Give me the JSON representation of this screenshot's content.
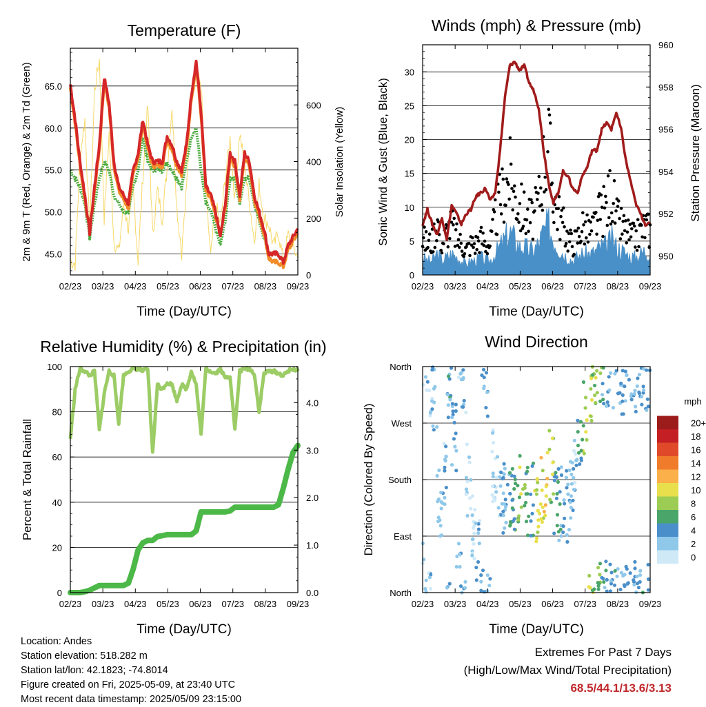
{
  "chart_data": [
    {
      "type": "line",
      "title": "Temperature (F)",
      "xlabel": "Time (Day/UTC)",
      "ylabel": "2m & 9m T (Red, Orange) & 2m Td (Green)",
      "ylabel_right": "Solar Insolation (Yellow)",
      "x_ticks": [
        "02/23",
        "03/23",
        "04/23",
        "05/23",
        "06/23",
        "07/23",
        "08/23",
        "09/23"
      ],
      "y_ticks": [
        "45.0",
        "50.0",
        "55.0",
        "60.0",
        "65.0"
      ],
      "y2_ticks": [
        "0",
        "200",
        "400",
        "600"
      ],
      "ylim": [
        42.5,
        69.5
      ],
      "y2lim": [
        0,
        800
      ],
      "grid": true,
      "series": [
        {
          "color": "#d62728",
          "values": [
            65.2,
            61,
            56,
            52,
            47.5,
            53,
            58,
            66,
            63,
            56,
            53,
            52,
            51,
            55,
            57,
            61,
            58,
            56,
            56,
            56,
            59,
            58,
            56,
            55,
            58,
            64,
            68,
            62,
            53,
            52,
            50,
            47,
            51,
            57,
            56,
            52,
            57,
            56,
            52,
            50,
            48,
            45,
            45,
            45,
            44,
            46,
            47,
            48
          ]
        },
        {
          "color": "#f28c28",
          "values": [
            64.8,
            60.5,
            55.5,
            51.5,
            47.8,
            52.5,
            57.5,
            65.5,
            62.5,
            55.5,
            52.5,
            51.5,
            50.5,
            54.5,
            56.5,
            60.5,
            57.5,
            55.5,
            55.5,
            55.5,
            58.5,
            57.5,
            55.5,
            54.5,
            57.5,
            63.5,
            67.5,
            61.5,
            52.5,
            51.5,
            49.5,
            47.2,
            50.5,
            56.5,
            55.5,
            51.5,
            56.5,
            55.5,
            51.5,
            49.5,
            47.5,
            44.5,
            44,
            44,
            43.5,
            45.5,
            46.5,
            47.5
          ]
        },
        {
          "color": "#4cab40",
          "values": [
            55,
            54,
            53,
            51,
            47,
            51,
            54,
            56,
            55,
            52,
            51,
            50,
            50,
            53,
            55,
            59,
            56,
            55,
            55,
            55,
            56,
            55,
            54,
            53,
            56,
            59,
            60,
            55,
            51,
            50,
            48,
            46,
            49,
            54,
            54,
            51,
            54,
            54,
            51,
            49,
            47,
            45,
            45,
            45,
            44,
            46,
            47,
            47
          ]
        },
        {
          "color": "#f5d458",
          "values": [
            50,
            40,
            420,
            550,
            150,
            650,
            760,
            200,
            500,
            120,
            80,
            250,
            160,
            300,
            50,
            350,
            600,
            140,
            300,
            200,
            380,
            600,
            240,
            80,
            300,
            640,
            700,
            680,
            300,
            60,
            250,
            180,
            340,
            480,
            260,
            500,
            380,
            260,
            120,
            320,
            200,
            180,
            100,
            150,
            50,
            140,
            100,
            60
          ]
        }
      ]
    },
    {
      "type": "scatter",
      "title": "Winds (mph) & Pressure (mb)",
      "xlabel": "Time (Day/UTC)",
      "ylabel": "Sonic Wind & Gust (Blue, Black)",
      "ylabel_right": "Station Pressure (Maroon)",
      "x_ticks": [
        "02/23",
        "03/23",
        "04/23",
        "05/23",
        "06/23",
        "07/23",
        "08/23",
        "09/23"
      ],
      "y_ticks": [
        "0",
        "5",
        "10",
        "15",
        "20",
        "25",
        "30"
      ],
      "y2_ticks": [
        "950",
        "952",
        "954",
        "956",
        "958",
        "960"
      ],
      "ylim": [
        0,
        34
      ],
      "y2lim": [
        949.1,
        960
      ],
      "grid": true,
      "series": [
        {
          "color": "#a11b1b",
          "values": [
            951.5,
            952.2,
            951.5,
            951,
            951.8,
            950.8,
            952.4,
            952,
            951.5,
            952,
            952.2,
            952.8,
            953,
            953.2,
            952.6,
            953,
            955,
            957.5,
            959,
            959.2,
            958.8,
            959,
            958.2,
            957.8,
            957,
            955,
            953.5,
            952.5,
            953,
            954,
            953.8,
            953.2,
            953,
            953.8,
            954.2,
            955,
            955,
            956,
            956.3,
            956,
            956.8,
            956,
            954.5,
            953.5,
            952.5,
            952,
            951.5,
            951.5
          ]
        },
        {
          "color": "#000000",
          "values": [
            6,
            5,
            5.5,
            9,
            5,
            7,
            8,
            6,
            5,
            4,
            5,
            5,
            6,
            5,
            5,
            9,
            12,
            14,
            16,
            13,
            11,
            10,
            9,
            9,
            12,
            18,
            21,
            13,
            10,
            8,
            6,
            5,
            6,
            8,
            7,
            7,
            9,
            10,
            11,
            14,
            9,
            8,
            7,
            6,
            6,
            7,
            8,
            7
          ]
        },
        {
          "color": "#4a90c8",
          "values": [
            2.5,
            2,
            2,
            3,
            2,
            2.5,
            3,
            2.5,
            2,
            1.5,
            2,
            2,
            2.5,
            2,
            2,
            3,
            4,
            5,
            6,
            5,
            4,
            4,
            3.5,
            3.5,
            4.5,
            6,
            7,
            5,
            4,
            3,
            2.5,
            2,
            2.5,
            3,
            3,
            3,
            3.5,
            4,
            4,
            5,
            4,
            3.5,
            3,
            2.5,
            2.5,
            3,
            3.5,
            3
          ]
        }
      ]
    },
    {
      "type": "line",
      "title": "Relative Humidity (%) & Precipitation (in)",
      "xlabel": "Time (Day/UTC)",
      "ylabel": "Percent & Total Rainfall",
      "x_ticks": [
        "02/23",
        "03/23",
        "04/23",
        "05/23",
        "06/23",
        "07/23",
        "08/23",
        "09/23"
      ],
      "y_ticks": [
        "0",
        "20",
        "40",
        "60",
        "80",
        "100"
      ],
      "y2_ticks": [
        "0.0",
        "1.0",
        "2.0",
        "3.0",
        "4.0"
      ],
      "ylim": [
        0,
        100
      ],
      "y2lim": [
        0,
        4.76
      ],
      "grid": true,
      "series": [
        {
          "color": "#9ccc65",
          "values": [
            68,
            90,
            99,
            98,
            96,
            98,
            72,
            88,
            98,
            96,
            75,
            96,
            98,
            99,
            99,
            98,
            99,
            62,
            92,
            90,
            93,
            92,
            85,
            92,
            90,
            98,
            92,
            70,
            99,
            98,
            97,
            99,
            95,
            96,
            72,
            98,
            99,
            99,
            97,
            80,
            97,
            98,
            98,
            97,
            96,
            98,
            99,
            98
          ]
        },
        {
          "color": "#4cb848",
          "values": [
            0,
            0,
            0,
            0.02,
            0.05,
            0.1,
            0.15,
            0.15,
            0.15,
            0.15,
            0.15,
            0.15,
            0.2,
            0.5,
            0.9,
            1.05,
            1.1,
            1.1,
            1.18,
            1.2,
            1.22,
            1.22,
            1.22,
            1.22,
            1.22,
            1.22,
            1.3,
            1.7,
            1.7,
            1.7,
            1.7,
            1.7,
            1.7,
            1.72,
            1.8,
            1.8,
            1.8,
            1.8,
            1.8,
            1.8,
            1.8,
            1.8,
            1.8,
            1.85,
            2.2,
            2.6,
            2.95,
            3.1
          ]
        }
      ]
    },
    {
      "type": "scatter",
      "title": "Wind Direction",
      "xlabel": "Time (Day/UTC)",
      "ylabel": "Direction (Colored By Speed)",
      "x_ticks": [
        "02/23",
        "03/23",
        "04/23",
        "05/23",
        "06/23",
        "07/23",
        "08/23",
        "09/23"
      ],
      "y_ticks": [
        "North",
        "East",
        "South",
        "West",
        "North"
      ],
      "ylim": [
        0,
        360
      ],
      "grid": true,
      "colorbar_title": "mph",
      "colorbar_labels": [
        "0",
        "2",
        "4",
        "6",
        "8",
        "10",
        "12",
        "14",
        "16",
        "18",
        "20+"
      ],
      "colorbar_colors": [
        "#cfe9f7",
        "#90c8ea",
        "#4a8fc9",
        "#4aa56a",
        "#9ccc53",
        "#e8df4c",
        "#fbb04a",
        "#f07c2b",
        "#e04a2a",
        "#c41f24",
        "#9c1b1b"
      ],
      "series": [
        {
          "name": "direction",
          "values": [
            20,
            340,
            300,
            150,
            200,
            330,
            250,
            40,
            320,
            180,
            100,
            60,
            340,
            330,
            200,
            170,
            150,
            140,
            160,
            130,
            160,
            150,
            150,
            140,
            170,
            180,
            200,
            150,
            140,
            140,
            160,
            190,
            230,
            280,
            330,
            350,
            360,
            355,
            350,
            350,
            340,
            340,
            350,
            350,
            345,
            350,
            345,
            330
          ]
        },
        {
          "name": "speed",
          "values": [
            1,
            2,
            3,
            1,
            2,
            4,
            3,
            2,
            2,
            1,
            1,
            2,
            3,
            3,
            1,
            1,
            2,
            3,
            5,
            7,
            8,
            6,
            5,
            9,
            10,
            11,
            8,
            5,
            4,
            3,
            2,
            2,
            5,
            8,
            9,
            8,
            7,
            4,
            3,
            4,
            3,
            3,
            3,
            4,
            3,
            4,
            3,
            3
          ]
        }
      ]
    }
  ],
  "info": {
    "location": "Location: Andes",
    "elevation": "Station elevation: 518.282 m",
    "latlon": "Station lat/lon: 42.1823; -74.8014",
    "created": "Figure created on Fri, 2025-05-09, at 23:40 UTC",
    "recent": "Most recent data timestamp: 2025/05/09 23:15:00"
  },
  "extremes": {
    "title": "Extremes For Past 7 Days",
    "subtitle": "(High/Low/Max Wind/Total Precipitation)",
    "values": "68.5/44.1/13.6/3.13"
  }
}
